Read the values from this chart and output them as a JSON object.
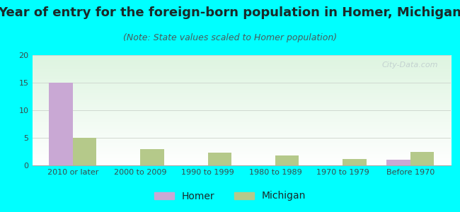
{
  "title": "Year of entry for the foreign-born population in Homer, Michigan",
  "subtitle": "(Note: State values scaled to Homer population)",
  "categories": [
    "2010 or later",
    "2000 to 2009",
    "1990 to 1999",
    "1980 to 1989",
    "1970 to 1979",
    "Before 1970"
  ],
  "homer_values": [
    15,
    0,
    0,
    0,
    0,
    1
  ],
  "michigan_values": [
    5,
    3,
    2.3,
    1.8,
    1.2,
    2.4
  ],
  "homer_color": "#c9a8d4",
  "michigan_color": "#b5c98a",
  "figure_bg": "#00ffff",
  "ylim": [
    0,
    20
  ],
  "yticks": [
    0,
    5,
    10,
    15,
    20
  ],
  "bar_width": 0.35,
  "title_fontsize": 13,
  "subtitle_fontsize": 9,
  "tick_fontsize": 8,
  "legend_fontsize": 10,
  "watermark_text": "City-Data.com",
  "watermark_color": "#c0cece",
  "grid_color": "#d0d8d0",
  "title_color": "#1a2a2a",
  "subtitle_color": "#4a5a5a",
  "tick_color": "#3a4a4a"
}
